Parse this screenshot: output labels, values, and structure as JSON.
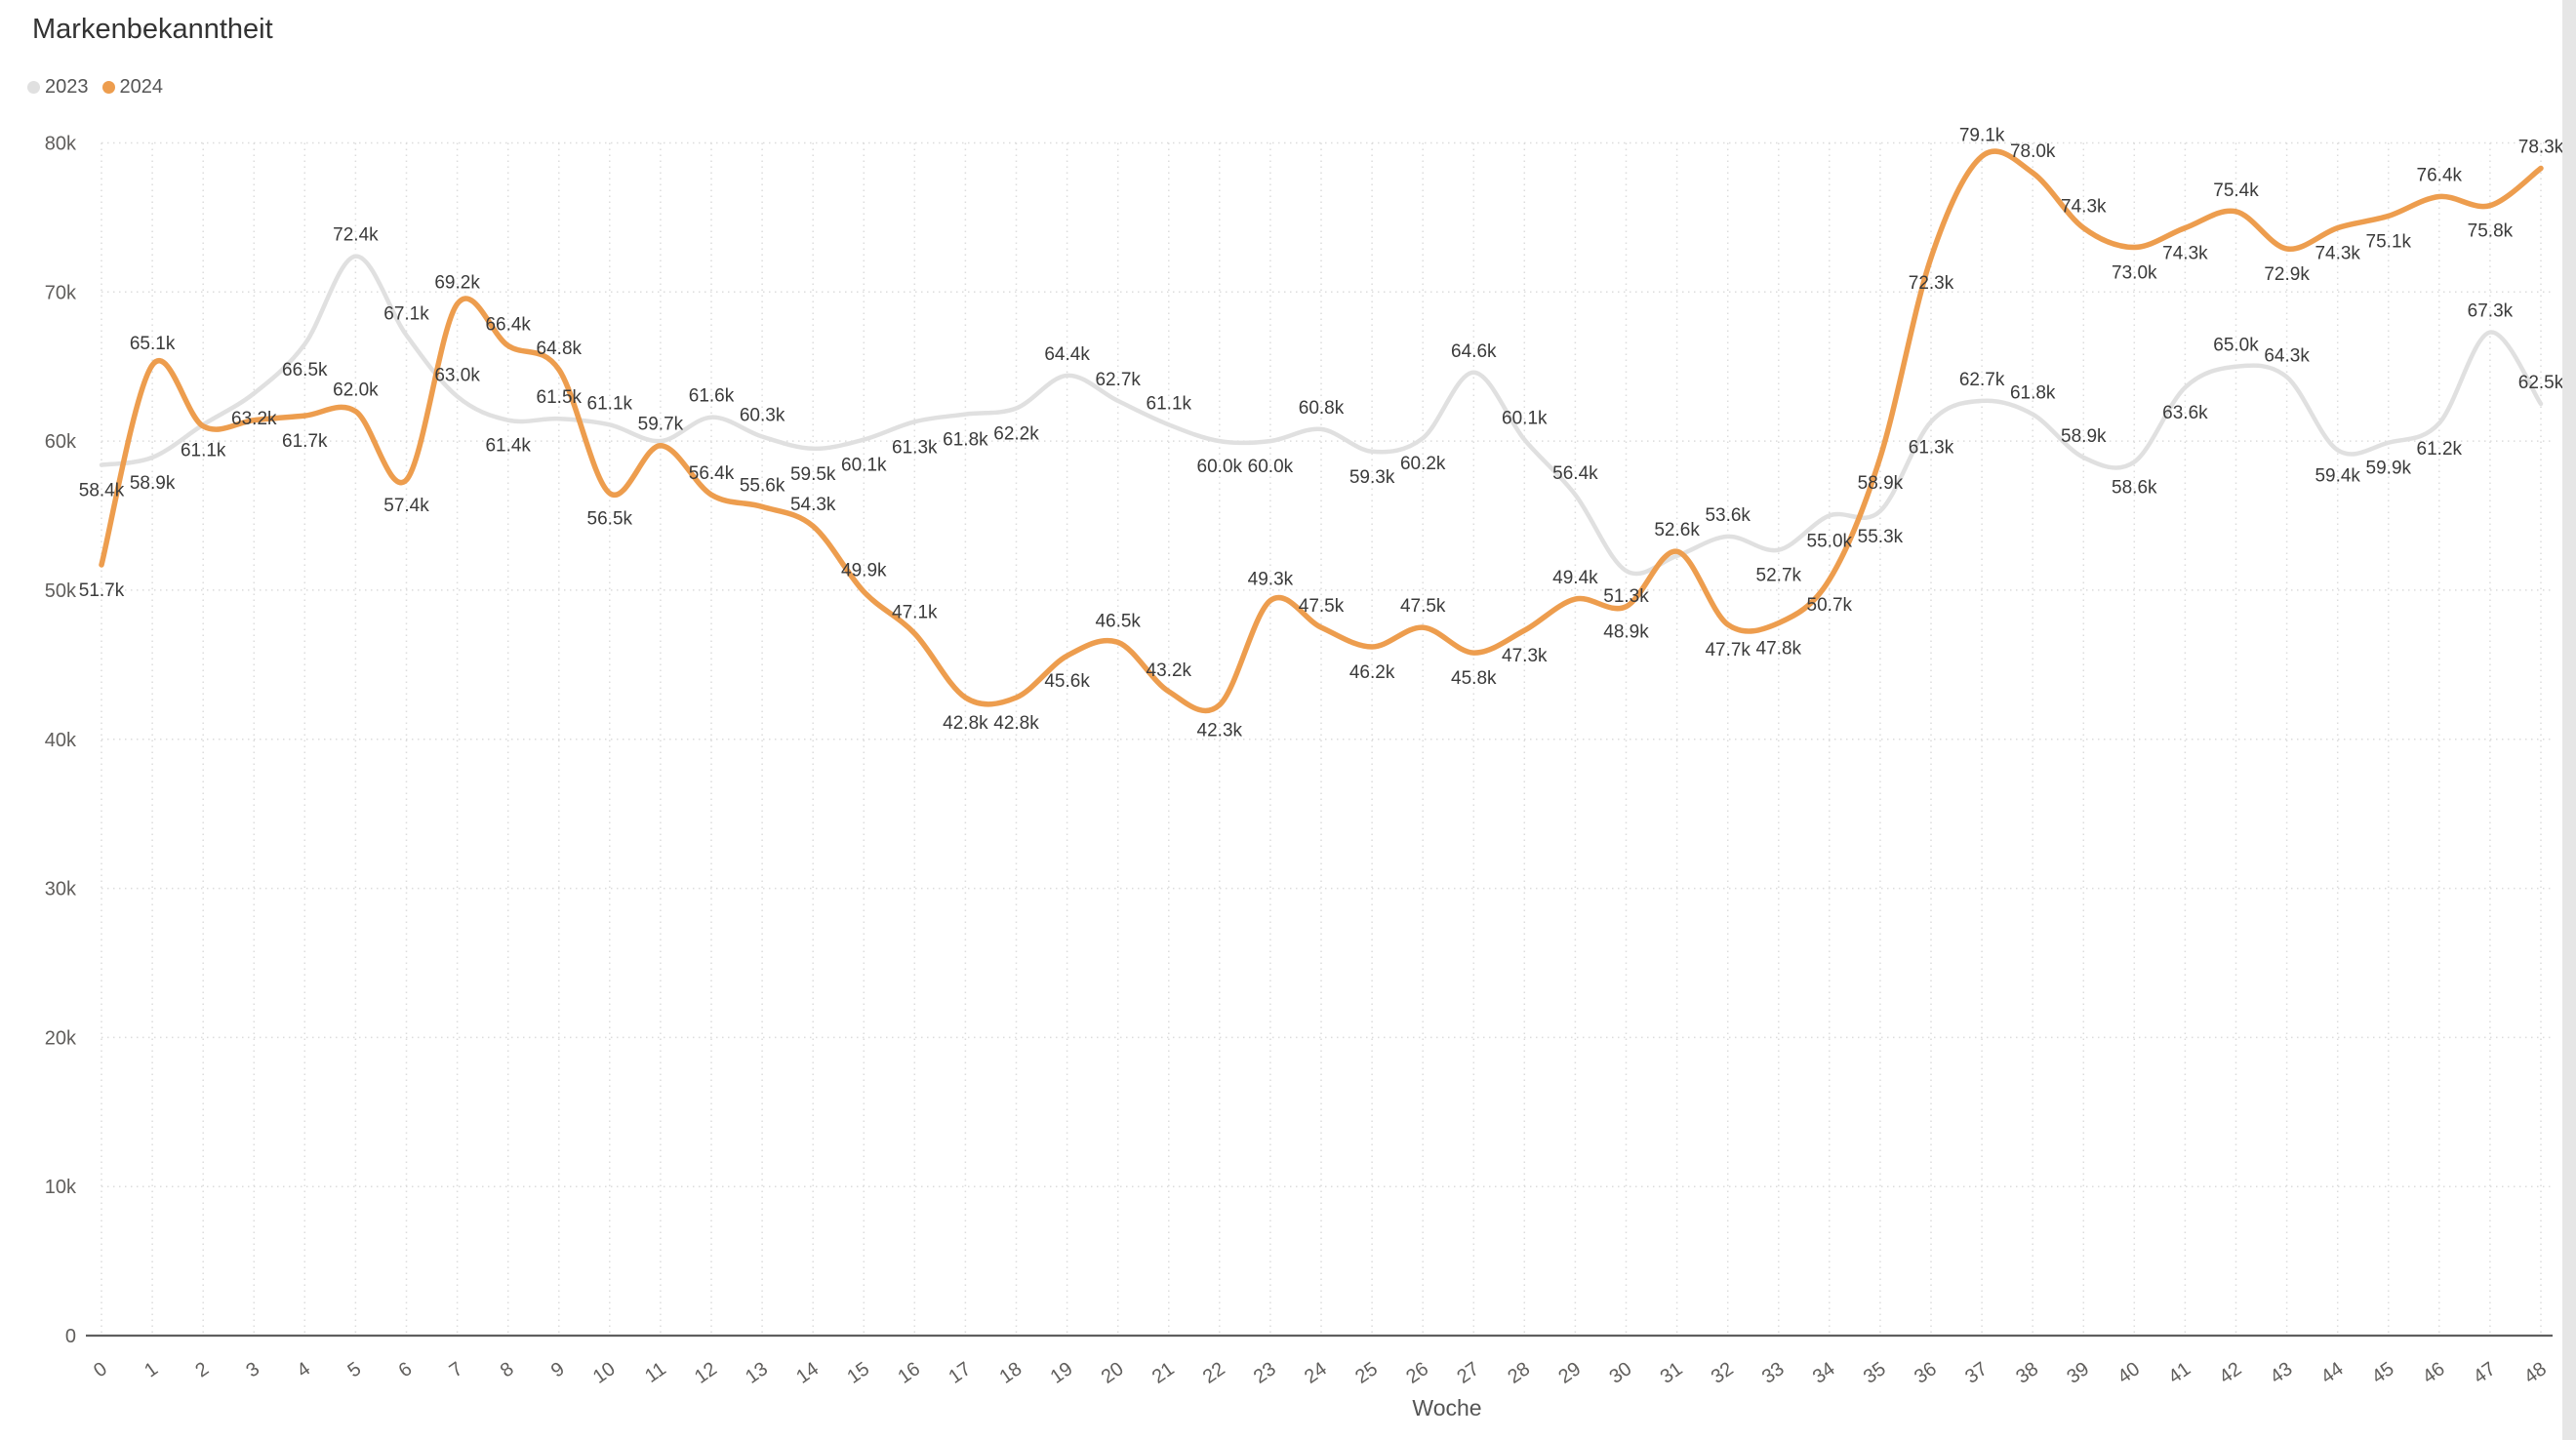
{
  "page": {
    "background_color": "#e6e6e6",
    "card_color": "#ffffff"
  },
  "chart_data": {
    "type": "line",
    "title": "Markenbekanntheit",
    "xlabel": "Woche",
    "unit": "k",
    "grid": true,
    "legend_position": "top-left",
    "ylim": [
      0,
      80000
    ],
    "y_tick_labels": [
      "0",
      "10k",
      "20k",
      "30k",
      "40k",
      "50k",
      "60k",
      "70k",
      "80k"
    ],
    "x_values": [
      0,
      1,
      2,
      3,
      4,
      5,
      6,
      7,
      8,
      9,
      10,
      11,
      12,
      13,
      14,
      15,
      16,
      17,
      18,
      19,
      20,
      21,
      22,
      23,
      24,
      25,
      26,
      27,
      28,
      29,
      30,
      31,
      32,
      33,
      34,
      35,
      36,
      37,
      38,
      39,
      40,
      41,
      42,
      43,
      44,
      45,
      46,
      47,
      48
    ],
    "series": [
      {
        "name": "2023",
        "color": "#e0e0e0",
        "stroke_width": 4.5,
        "values_k": [
          58.4,
          58.9,
          61.1,
          63.2,
          66.5,
          72.4,
          67.1,
          63.0,
          61.4,
          61.5,
          61.1,
          60.0,
          61.6,
          60.3,
          59.5,
          60.1,
          61.3,
          61.8,
          62.2,
          64.4,
          62.7,
          61.1,
          60.0,
          60.0,
          60.8,
          59.3,
          60.2,
          64.6,
          60.1,
          56.4,
          51.3,
          52.3,
          53.6,
          52.7,
          55.0,
          55.3,
          61.3,
          62.7,
          61.8,
          58.9,
          58.6,
          63.6,
          65.0,
          64.3,
          59.4,
          59.9,
          61.2,
          67.3,
          62.5
        ],
        "labels": [
          "58.4k",
          "58.9k",
          "61.1k",
          "63.2k",
          "66.5k",
          "72.4k",
          "67.1k",
          "63.0k",
          "61.4k",
          "61.5k",
          "61.1k",
          null,
          "61.6k",
          "60.3k",
          "59.5k",
          "60.1k",
          "61.3k",
          "61.8k",
          "62.2k",
          "64.4k",
          "62.7k",
          "61.1k",
          "60.0k",
          "60.0k",
          "60.8k",
          "59.3k",
          "60.2k",
          "64.6k",
          "60.1k",
          "56.4k",
          "51.3k",
          null,
          "53.6k",
          "52.7k",
          "55.0k",
          "55.3k",
          "61.3k",
          "62.7k",
          "61.8k",
          "58.9k",
          "58.6k",
          "63.6k",
          "65.0k",
          "64.3k",
          "59.4k",
          "59.9k",
          "61.2k",
          "67.3k",
          "62.5k"
        ]
      },
      {
        "name": "2024",
        "color": "#ed9d4e",
        "stroke_width": 5.5,
        "values_k": [
          51.7,
          65.1,
          61.0,
          61.4,
          61.7,
          62.0,
          57.4,
          69.2,
          66.4,
          64.8,
          56.5,
          59.7,
          56.4,
          55.6,
          54.3,
          49.9,
          47.1,
          42.8,
          42.8,
          45.6,
          46.5,
          43.2,
          42.3,
          49.3,
          47.5,
          46.2,
          47.5,
          45.8,
          47.3,
          49.4,
          48.9,
          52.6,
          47.7,
          47.8,
          50.7,
          58.9,
          72.3,
          79.1,
          78.0,
          74.3,
          73.0,
          74.3,
          75.4,
          72.9,
          74.3,
          75.1,
          76.4,
          75.8,
          78.3
        ],
        "labels": [
          "51.7k",
          "65.1k",
          null,
          null,
          "61.7k",
          "62.0k",
          "57.4k",
          "69.2k",
          "66.4k",
          "64.8k",
          "56.5k",
          "59.7k",
          "56.4k",
          "55.6k",
          "54.3k",
          "49.9k",
          "47.1k",
          "42.8k",
          "42.8k",
          "45.6k",
          "46.5k",
          "43.2k",
          "42.3k",
          "49.3k",
          "47.5k",
          "46.2k",
          "47.5k",
          "45.8k",
          "47.3k",
          "49.4k",
          "48.9k",
          "52.6k",
          "47.7k",
          "47.8k",
          "50.7k",
          "58.9k",
          "72.3k",
          "79.1k",
          "78.0k",
          "74.3k",
          "73.0k",
          "74.3k",
          "75.4k",
          "72.9k",
          "74.3k",
          "75.1k",
          "76.4k",
          "75.8k",
          "78.3k"
        ]
      }
    ],
    "style": {
      "gridline_color": "#dcdcdc",
      "axis_line_color": "#5f5f5f",
      "tick_label_color": "#605e5c",
      "data_label_color": "#3b3b3b"
    }
  }
}
